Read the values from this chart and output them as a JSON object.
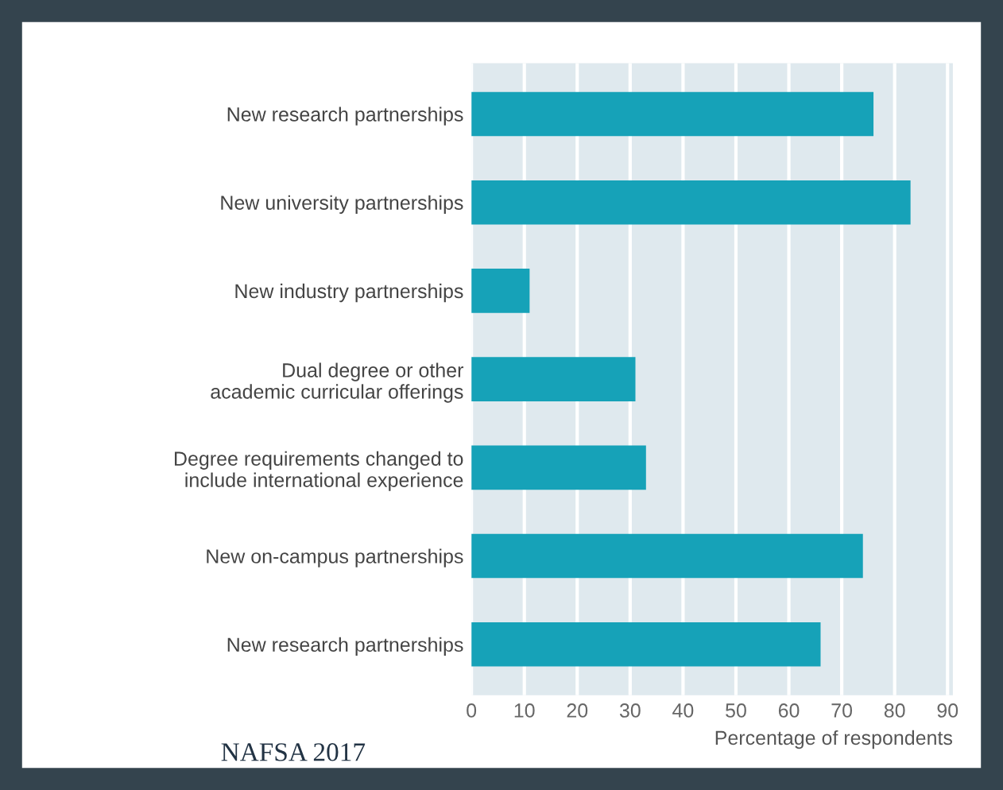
{
  "chart_data": {
    "type": "bar",
    "orientation": "horizontal",
    "categories": [
      "New research partnerships",
      "New university partnerships",
      "New industry partnerships",
      "Dual degree or other\nacademic curricular offerings",
      "Degree requirements changed to\ninclude international experience",
      "New on-campus partnerships",
      "New research partnerships"
    ],
    "values": [
      76,
      83,
      11,
      31,
      33,
      74,
      66
    ],
    "color": "#16a2b8",
    "xlabel": "Percentage of respondents",
    "xlim": [
      0,
      91
    ],
    "xticks": [
      0,
      10,
      20,
      30,
      40,
      50,
      60,
      70,
      80,
      90
    ],
    "grid": "x",
    "annotations": [
      "NAFSA 2017"
    ]
  }
}
